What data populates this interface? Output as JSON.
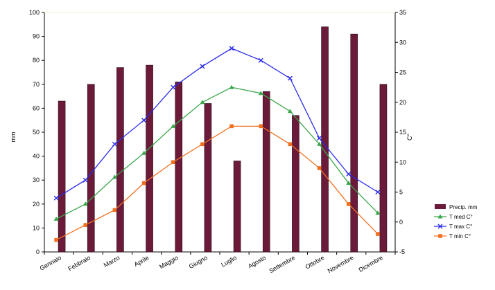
{
  "chart_data": {
    "type": "bar+line",
    "categories": [
      "Gennaio",
      "Febbraio",
      "Marzo",
      "Aprile",
      "Maggio",
      "Giugno",
      "Luglio",
      "Agosto",
      "Settembre",
      "Ottobre",
      "Novembre",
      "Dicembre"
    ],
    "ylabel_left": "mm",
    "ylabel_right": "C°",
    "ylim_left": [
      0,
      100
    ],
    "ylim_right": [
      -5,
      35
    ],
    "left_ticks": [
      0,
      10,
      20,
      30,
      40,
      50,
      60,
      70,
      80,
      90,
      100
    ],
    "right_ticks": [
      -5,
      0,
      5,
      10,
      15,
      20,
      25,
      30,
      35
    ],
    "grid": false,
    "legend_position": "right",
    "bar_series": {
      "name": "Precip. mm",
      "color": "#6b1a3a",
      "axis": "left",
      "values": [
        63,
        70,
        77,
        78,
        71,
        62,
        38,
        67,
        57,
        94,
        91,
        70
      ]
    },
    "line_series": [
      {
        "name": "T med C°",
        "color": "#3aa64b",
        "marker": "triangle",
        "axis": "right",
        "values": [
          0.5,
          3,
          7.5,
          11.5,
          16,
          20,
          22.5,
          21.5,
          18.5,
          13,
          6.5,
          1.5
        ]
      },
      {
        "name": "T max C°",
        "color": "#2a2aee",
        "marker": "x",
        "axis": "right",
        "values": [
          4,
          7,
          13,
          17,
          22.5,
          26,
          29,
          27,
          24,
          14,
          8,
          5
        ]
      },
      {
        "name": "T min C°",
        "color": "#f07020",
        "marker": "square",
        "axis": "right",
        "values": [
          -3,
          -0.5,
          2,
          6.5,
          10,
          13,
          16,
          16,
          13,
          9,
          3,
          -2
        ]
      }
    ]
  }
}
